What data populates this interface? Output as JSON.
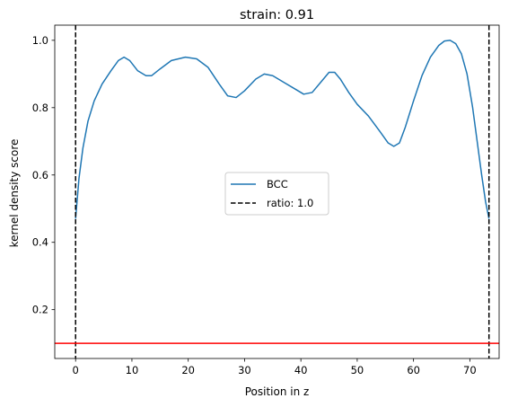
{
  "chart_data": {
    "type": "line",
    "title": "strain: 0.91",
    "xlabel": "Position in z",
    "ylabel": "kernel density score",
    "xlim": [
      -3.7,
      75.2
    ],
    "ylim": [
      0.055,
      1.045
    ],
    "xticks": [
      0,
      10,
      20,
      30,
      40,
      50,
      60,
      70
    ],
    "yticks": [
      0.2,
      0.4,
      0.6,
      0.8,
      1.0
    ],
    "ytick_labels": [
      "0.2",
      "0.4",
      "0.6",
      "0.8",
      "1.0"
    ],
    "grid": false,
    "legend_position": "center",
    "series": [
      {
        "name": "BCC",
        "color": "#1f77b4",
        "style": "solid",
        "x": [
          0,
          0.6,
          1.3,
          2.2,
          3.3,
          4.7,
          6.3,
          7.6,
          8.6,
          9.6,
          11,
          12.5,
          13.5,
          15,
          17,
          19.5,
          21.5,
          23.5,
          25.5,
          27,
          28.5,
          30,
          32,
          33.5,
          35,
          37,
          39,
          40.5,
          42,
          43.5,
          45,
          46,
          47,
          48.5,
          50,
          52,
          54,
          55.5,
          56.5,
          57.5,
          58.5,
          60,
          61.5,
          63,
          64.5,
          65.5,
          66.5,
          67.5,
          68.5,
          69.5,
          70.5,
          71.3,
          72.1,
          72.8,
          73.4
        ],
        "y": [
          0.47,
          0.59,
          0.68,
          0.76,
          0.82,
          0.87,
          0.91,
          0.94,
          0.95,
          0.94,
          0.91,
          0.895,
          0.895,
          0.915,
          0.94,
          0.95,
          0.945,
          0.92,
          0.87,
          0.835,
          0.83,
          0.85,
          0.885,
          0.9,
          0.895,
          0.875,
          0.855,
          0.84,
          0.845,
          0.875,
          0.905,
          0.905,
          0.885,
          0.845,
          0.81,
          0.775,
          0.73,
          0.695,
          0.685,
          0.695,
          0.74,
          0.82,
          0.895,
          0.95,
          0.985,
          0.998,
          1.0,
          0.99,
          0.96,
          0.9,
          0.8,
          0.7,
          0.6,
          0.52,
          0.47
        ]
      },
      {
        "name": "ratio: 1.0",
        "color": "#000000",
        "style": "dashed",
        "vlines": [
          0,
          73.4
        ]
      }
    ],
    "hline": {
      "y": 0.1,
      "color": "#ff0000"
    }
  }
}
